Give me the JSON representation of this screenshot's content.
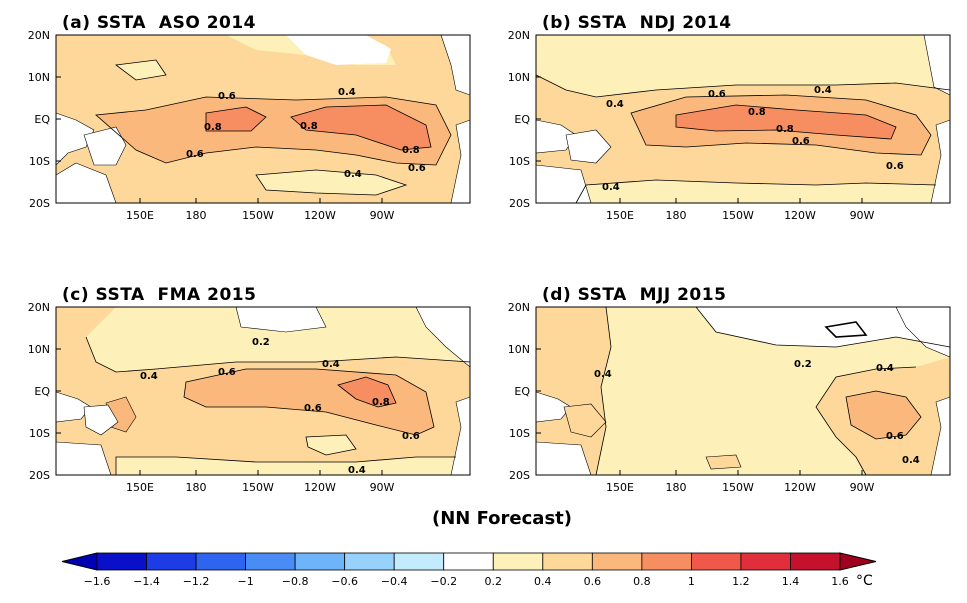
{
  "panels": [
    {
      "id": "a",
      "title": "(a) SSTA  ASO 2014",
      "level_labels": [
        "0.6",
        "0.8",
        "0.8",
        "0.4",
        "0.6",
        "0.8",
        "0.6",
        "0.4"
      ]
    },
    {
      "id": "b",
      "title": "(b) SSTA  NDJ 2014",
      "level_labels": [
        "0.4",
        "0.6",
        "0.8",
        "0.8",
        "0.6",
        "0.4",
        "0.4",
        "0.6"
      ]
    },
    {
      "id": "c",
      "title": "(c) SSTA  FMA 2015",
      "level_labels": [
        "0.2",
        "0.4",
        "0.4",
        "0.6",
        "0.6",
        "0.8",
        "0.6",
        "0.4"
      ]
    },
    {
      "id": "d",
      "title": "(d) SSTA  MJJ 2015",
      "level_labels": [
        "0.4",
        "0.2",
        "0.4",
        "0.6",
        "0.4"
      ]
    }
  ],
  "lat_labels": [
    "20N",
    "10N",
    "EQ",
    "10S",
    "20S"
  ],
  "lon_labels": [
    "150E",
    "180",
    "150W",
    "120W",
    "90W"
  ],
  "subtitle": "(NN Forecast)",
  "colorbar": {
    "tick_labels": [
      "-1.6",
      "-1.4",
      "-1.2",
      "-1",
      "-0.8",
      "-0.6",
      "-0.4",
      "-0.2",
      "0.2",
      "0.4",
      "0.6",
      "0.8",
      "1",
      "1.2",
      "1.4",
      "1.6"
    ],
    "unit": "°C",
    "colors": [
      "#0a10c8",
      "#1e3ce6",
      "#2f64f0",
      "#4a8cf5",
      "#6eb4fa",
      "#96d2fc",
      "#c3ebfd",
      "#ffffff",
      "#fdf0b8",
      "#fdd89a",
      "#fbb87c",
      "#f78e62",
      "#f0584a",
      "#e02e3a",
      "#c4122c"
    ]
  }
}
